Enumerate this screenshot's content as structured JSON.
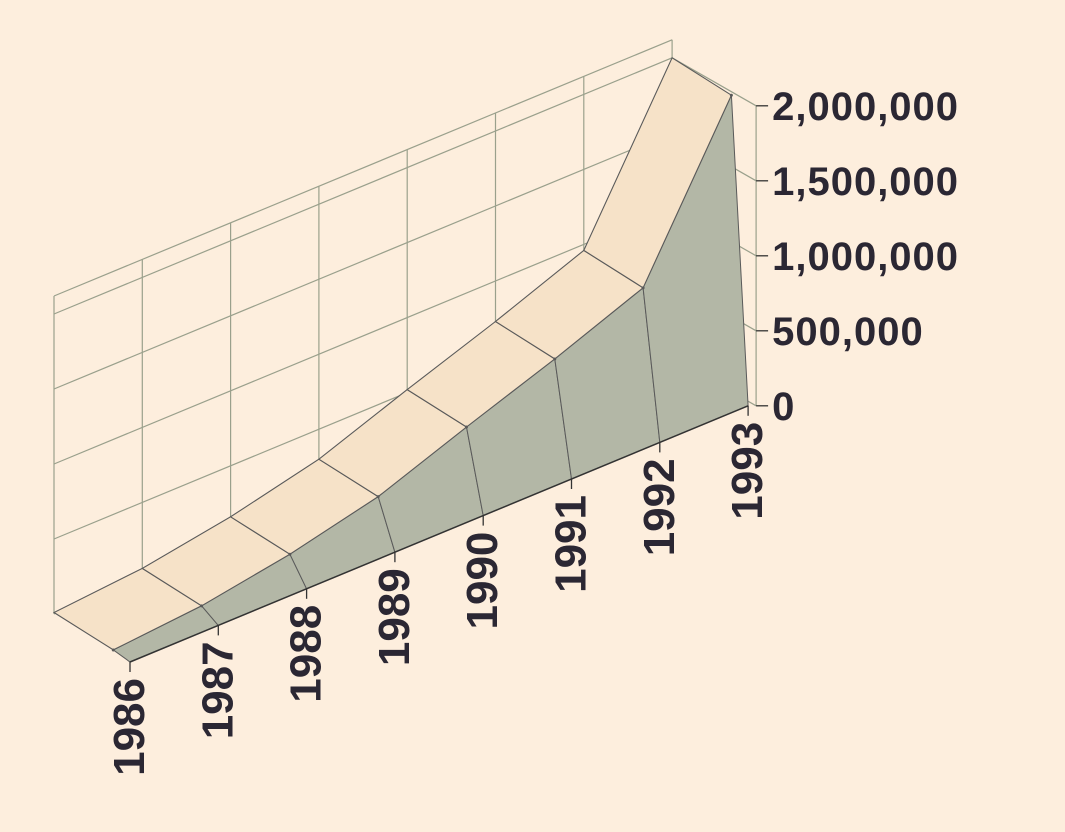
{
  "chart_data": {
    "type": "area",
    "view": "3d-ribbon",
    "title": "",
    "xlabel": "",
    "ylabel": "",
    "categories": [
      "1986",
      "1987",
      "1988",
      "1989",
      "1990",
      "1991",
      "1992",
      "1993"
    ],
    "values": [
      10000,
      60000,
      160000,
      300000,
      520000,
      730000,
      960000,
      2000000
    ],
    "y_ticks": [
      0,
      500000,
      1000000,
      1500000,
      2000000
    ],
    "y_tick_labels": [
      "0",
      "500,000",
      "1,000,000",
      "1,500,000",
      "2,000,000"
    ],
    "ylim": [
      0,
      2000000
    ],
    "grid": true,
    "legend": "none",
    "colors": {
      "background": "#fdeedd",
      "ribbon_top": "#f6e2c8",
      "ribbon_side": "#b3b7a6",
      "grid": "#9aa08c",
      "edge": "#5a5a5a",
      "text": "#2b2733"
    }
  }
}
